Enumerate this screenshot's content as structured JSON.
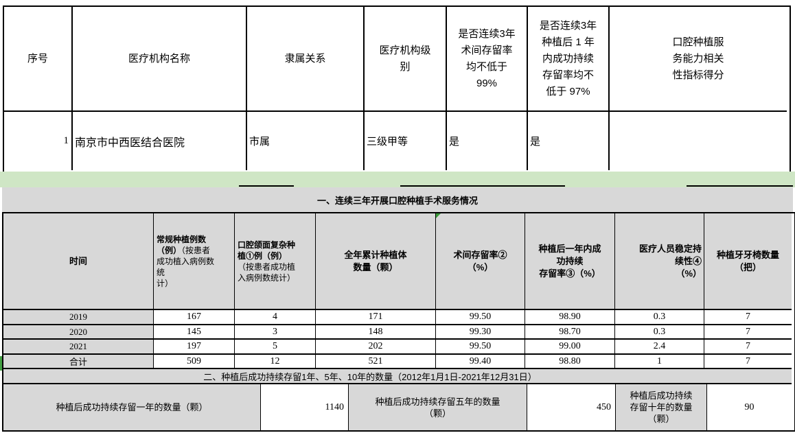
{
  "colors": {
    "band_green": "#cfe6c5",
    "header_gray": "#d8d8d8",
    "marker_green": "#3a9a3a",
    "border_black": "#000000"
  },
  "top_table": {
    "headers": [
      "序号",
      "医疗机构名称",
      "隶属关系",
      "医疗机构级\n别",
      "是否连续3年\n术间存留率\n均不低于\n99%",
      "是否连续3年\n种植后 1 年\n内成功持续\n存留率均不\n低于 97%",
      "口腔种植服\n务能力相关\n性指标得分"
    ],
    "row": {
      "serial": "1",
      "institution": "南京市中西医结合医院",
      "affiliation": "市属",
      "level": "三级甲等",
      "retention_99": "是",
      "success_97": "是",
      "score": ""
    }
  },
  "section1": {
    "title": "一、连续三年开展口腔种植手术服务情况"
  },
  "service_table": {
    "headers": {
      "time": "时间",
      "c2_bold": "常规种植例数\n（例）",
      "c2_normal": "（按患者\n成功植入病例数\n统\n计）",
      "c3_bold": "口腔颌面复杂种\n植①例（例）",
      "c3_normal": "\n（按患者成功植\n入病例数统计）",
      "c4": "全年累计种植体\n数量（颗）",
      "c5": "术间存留率②\n（%）",
      "c6": "种植后一年内成\n功持续\n存留率③（%）",
      "c7": "医疗人员稳定持\n续性④\n（%）",
      "c8": "种植牙牙椅数量\n（把）"
    },
    "rows": [
      [
        "2019",
        "167",
        "4",
        "171",
        "99.50",
        "98.90",
        "0.3",
        "7"
      ],
      [
        "2020",
        "145",
        "3",
        "148",
        "99.30",
        "98.70",
        "0.3",
        "7"
      ],
      [
        "2021",
        "197",
        "5",
        "202",
        "99.50",
        "99.00",
        "2.4",
        "7"
      ],
      [
        "合计",
        "509",
        "12",
        "521",
        "99.40",
        "98.80",
        "1",
        "7"
      ]
    ]
  },
  "section2": {
    "title": "二、种植后成功持续存留1年、5年、10年的数量（2012年1月1日-2021年12月31日）"
  },
  "retention_counts": {
    "one_year_label": "种植后成功持续存留一年的数量（颗）",
    "one_year_value": "1140",
    "five_year_label": "种植后成功持续存留五年的数量\n（颗）",
    "five_year_value": "450",
    "ten_year_label": "种植后成功持续\n存留十年的数量\n（颗）",
    "ten_year_value": "90"
  }
}
